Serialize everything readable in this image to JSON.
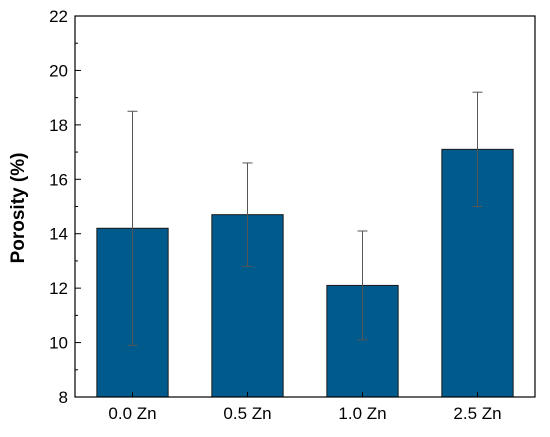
{
  "chart_data": {
    "type": "bar",
    "title": "",
    "xlabel": "",
    "ylabel": "Porosity (%)",
    "categories": [
      "0.0 Zn",
      "0.5 Zn",
      "1.0 Zn",
      "2.5 Zn"
    ],
    "values": [
      14.2,
      14.7,
      12.1,
      17.1
    ],
    "error_low": [
      9.9,
      12.8,
      10.1,
      15.0
    ],
    "error_high": [
      18.5,
      16.6,
      14.1,
      19.2
    ],
    "ylim": [
      8,
      22
    ],
    "yticks": [
      8,
      10,
      12,
      14,
      16,
      18,
      20,
      22
    ],
    "grid": false,
    "legend": "none",
    "bar_color": "#005a8c",
    "error_bar_color": "#555555"
  }
}
